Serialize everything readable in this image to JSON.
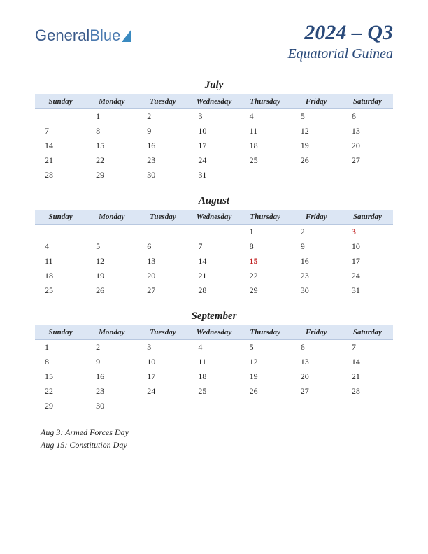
{
  "logo": {
    "part1": "General",
    "part2": "Blue"
  },
  "title": {
    "period": "2024 – Q3",
    "country": "Equatorial Guinea"
  },
  "weekdays": [
    "Sunday",
    "Monday",
    "Tuesday",
    "Wednesday",
    "Thursday",
    "Friday",
    "Saturday"
  ],
  "colors": {
    "header_bg": "#dce6f4",
    "title_color": "#2a4a7a",
    "holiday_color": "#c02020",
    "text": "#222222"
  },
  "months": [
    {
      "name": "July",
      "weeks": [
        [
          "",
          "1",
          "2",
          "3",
          "4",
          "5",
          "6"
        ],
        [
          "7",
          "8",
          "9",
          "10",
          "11",
          "12",
          "13"
        ],
        [
          "14",
          "15",
          "16",
          "17",
          "18",
          "19",
          "20"
        ],
        [
          "21",
          "22",
          "23",
          "24",
          "25",
          "26",
          "27"
        ],
        [
          "28",
          "29",
          "30",
          "31",
          "",
          "",
          ""
        ]
      ],
      "holidays": []
    },
    {
      "name": "August",
      "weeks": [
        [
          "",
          "",
          "",
          "",
          "1",
          "2",
          "3"
        ],
        [
          "4",
          "5",
          "6",
          "7",
          "8",
          "9",
          "10"
        ],
        [
          "11",
          "12",
          "13",
          "14",
          "15",
          "16",
          "17"
        ],
        [
          "18",
          "19",
          "20",
          "21",
          "22",
          "23",
          "24"
        ],
        [
          "25",
          "26",
          "27",
          "28",
          "29",
          "30",
          "31"
        ]
      ],
      "holidays": [
        "3",
        "15"
      ]
    },
    {
      "name": "September",
      "weeks": [
        [
          "1",
          "2",
          "3",
          "4",
          "5",
          "6",
          "7"
        ],
        [
          "8",
          "9",
          "10",
          "11",
          "12",
          "13",
          "14"
        ],
        [
          "15",
          "16",
          "17",
          "18",
          "19",
          "20",
          "21"
        ],
        [
          "22",
          "23",
          "24",
          "25",
          "26",
          "27",
          "28"
        ],
        [
          "29",
          "30",
          "",
          "",
          "",
          "",
          ""
        ]
      ],
      "holidays": []
    }
  ],
  "holiday_lines": [
    "Aug 3: Armed Forces Day",
    "Aug 15: Constitution Day"
  ]
}
